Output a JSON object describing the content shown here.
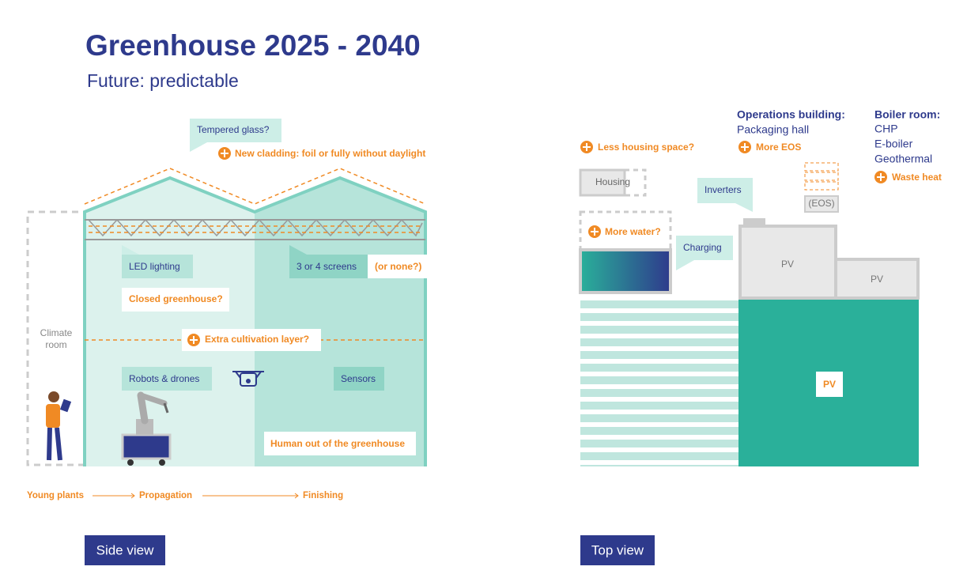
{
  "header": {
    "title": "Greenhouse 2025 - 2040",
    "subtitle": "Future: predictable"
  },
  "side_view": {
    "tempered_glass": "Tempered glass?",
    "new_cladding": "New cladding: foil or fully without daylight",
    "led_lighting": "LED lighting",
    "screens": "3 or 4 screens",
    "or_none": "(or none?)",
    "closed_greenhouse": "Closed greenhouse?",
    "climate_room": [
      "Climate",
      "room"
    ],
    "extra_layer": "Extra cultivation layer?",
    "robots": "Robots & drones",
    "sensors": "Sensors",
    "human_out": "Human out of the greenhouse",
    "flow": [
      "Young plants",
      "Propagation",
      "Finishing"
    ],
    "caption": "Side view"
  },
  "top_view": {
    "less_housing": "Less housing space?",
    "operations": {
      "heading": "Operations building:",
      "item": "Packaging hall",
      "plus": "More EOS"
    },
    "boiler": {
      "heading": "Boiler room:",
      "items": [
        "CHP",
        "E-boiler",
        "Geothermal"
      ],
      "plus": "Waste heat"
    },
    "housing": "Housing",
    "inverters": "Inverters",
    "eos": "(EOS)",
    "more_water": "More water?",
    "charging": "Charging",
    "pv": [
      "PV",
      "PV",
      "PV"
    ],
    "caption": "Top view"
  }
}
